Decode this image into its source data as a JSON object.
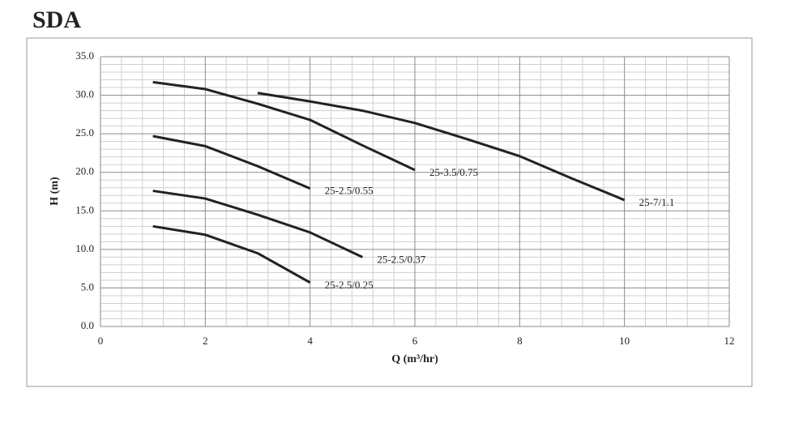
{
  "chart_data": {
    "type": "line",
    "title": "SDA",
    "x_label": "Q (m³/hr)",
    "y_label": "H (m)",
    "xlim": [
      0,
      12
    ],
    "xticks": [
      0,
      2,
      4,
      6,
      8,
      10,
      12
    ],
    "ylim": [
      0,
      35
    ],
    "yticks": [
      {
        "value": 0,
        "label": "0.0"
      },
      {
        "value": 5,
        "label": "5.0"
      },
      {
        "value": 10,
        "label": "10.0"
      },
      {
        "value": 15,
        "label": "15.0"
      },
      {
        "value": 20,
        "label": "20.0"
      },
      {
        "value": 25,
        "label": "25.0"
      },
      {
        "value": 30,
        "label": "30.0"
      },
      {
        "value": 35,
        "label": "35.0"
      }
    ],
    "grid": true,
    "series": [
      {
        "name": "25-2.5/0.25",
        "color": "#222222",
        "x": [
          1,
          2,
          3,
          4
        ],
        "values": [
          13.0,
          11.9,
          9.5,
          5.7
        ]
      },
      {
        "name": "25-2.5/0.37",
        "color": "#222222",
        "x": [
          1,
          2,
          3,
          4,
          5
        ],
        "values": [
          17.6,
          16.6,
          14.5,
          12.2,
          9.0
        ]
      },
      {
        "name": "25-2.5/0.55",
        "color": "#222222",
        "x": [
          1,
          2,
          3,
          4
        ],
        "values": [
          24.7,
          23.4,
          20.8,
          17.9
        ]
      },
      {
        "name": "25-3.5/0.75",
        "color": "#222222",
        "x": [
          1,
          2,
          3,
          4,
          5,
          6
        ],
        "values": [
          31.7,
          30.8,
          28.9,
          26.8,
          23.5,
          20.3
        ]
      },
      {
        "name": "25-7/1.1",
        "color": "#222222",
        "x": [
          3,
          4,
          5,
          6,
          7,
          8,
          9,
          10
        ],
        "values": [
          30.3,
          29.2,
          28.0,
          26.4,
          24.3,
          22.1,
          19.2,
          16.4
        ]
      }
    ]
  }
}
